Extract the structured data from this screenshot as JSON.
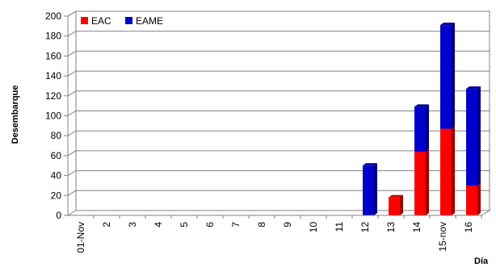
{
  "chart_data": {
    "type": "bar",
    "stacked": true,
    "categories": [
      "01-Nov",
      "2",
      "3",
      "4",
      "5",
      "6",
      "7",
      "8",
      "9",
      "10",
      "11",
      "12",
      "13",
      "14",
      "15-nov",
      "16"
    ],
    "series": [
      {
        "name": "EAC",
        "color": "#ff0000",
        "values": [
          0,
          0,
          0,
          0,
          0,
          0,
          0,
          0,
          0,
          0,
          0,
          0,
          18,
          64,
          87,
          30
        ]
      },
      {
        "name": "EAME",
        "color": "#0000cc",
        "values": [
          0,
          0,
          0,
          0,
          0,
          0,
          0,
          0,
          0,
          0,
          0,
          50,
          0,
          45,
          104,
          97
        ]
      }
    ],
    "ylim": [
      0,
      200
    ],
    "yticks": [
      0,
      20,
      40,
      60,
      80,
      100,
      120,
      140,
      160,
      180,
      200
    ],
    "xlabel": "Día",
    "ylabel": "Desembarque",
    "grid": true,
    "legend_position": "top-left",
    "x_tick_rotation": -90
  }
}
